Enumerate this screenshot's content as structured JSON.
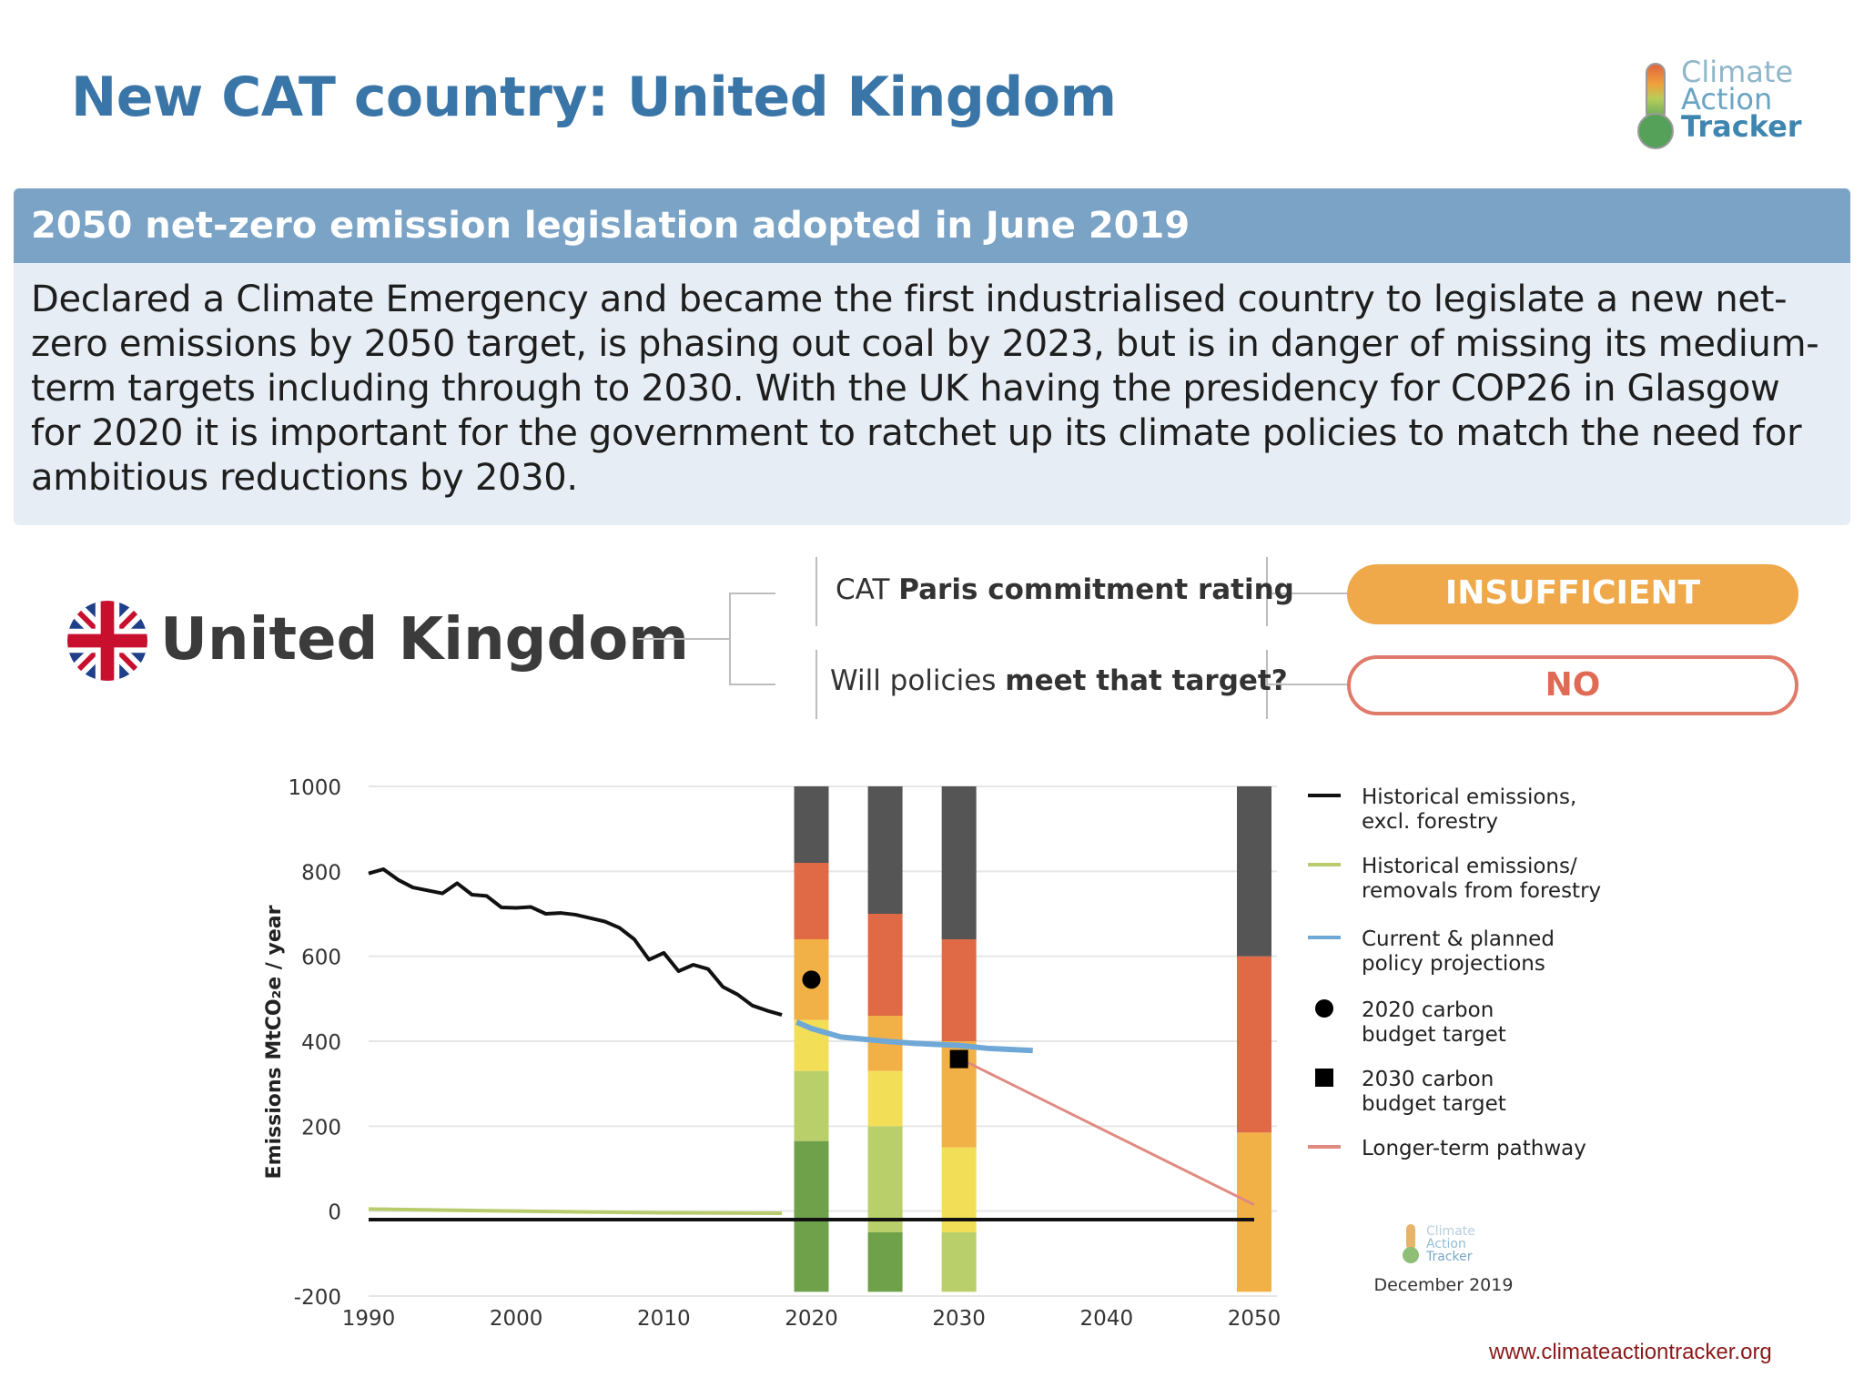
{
  "slide": {
    "title": "New CAT country: United Kingdom",
    "url": "www.climateactiontracker.org"
  },
  "logo": {
    "line1": "Climate",
    "line2": "Action",
    "line3": "Tracker",
    "small_line1": "Climate",
    "small_line2": "Action",
    "small_line3": "Tracker"
  },
  "panel": {
    "header": "2050 net-zero emission legislation adopted in June 2019",
    "lines": [
      "Declared a Climate Emergency and became the first industrialised country to legislate a new net-",
      "zero emissions by 2050 target, is phasing out coal by 2023, but is in danger of missing its medium-",
      "term targets including through to 2030.  With the UK having the presidency for COP26 in Glasgow",
      "for 2020 it is important for the government to ratchet up its climate policies to match the need for",
      "ambitious reductions by 2030."
    ]
  },
  "rating": {
    "country": "United Kingdom",
    "q1_pre": "CAT ",
    "q1_bold": "Paris commitment rating",
    "q2_pre": "Will policies ",
    "q2_bold": "meet that target?",
    "a1": "INSUFFICIENT",
    "a2": "NO"
  },
  "colors": {
    "title_blue": "#3a75a8",
    "header_blue": "#7aa3c6",
    "panel_bg": "#e6edf4",
    "insufficient": "#efa84a",
    "no_border": "#e07a6a",
    "historical": "#111111",
    "forestry": "#b8cc6e",
    "policy": "#6fa8d6",
    "longterm": "#e08a80",
    "url": "#8b1a1a"
  },
  "chart_data": {
    "type": "line",
    "ylabel": "Emissions MtCO₂e / year",
    "xlim": [
      1990,
      2050
    ],
    "ylim": [
      -200,
      1000
    ],
    "x_ticks": [
      1990,
      2000,
      2010,
      2020,
      2030,
      2040,
      2050
    ],
    "y_ticks": [
      -200,
      0,
      200,
      400,
      600,
      800,
      1000
    ],
    "grid": true,
    "legend_position": "right",
    "date_label": "December 2019",
    "series": [
      {
        "name": "Historical emissions, excl. forestry",
        "legend": [
          "Historical emissions,",
          "excl. forestry"
        ],
        "color": "#111111",
        "x": [
          1990,
          1991,
          1992,
          1993,
          1994,
          1995,
          1996,
          1997,
          1998,
          1999,
          2000,
          2001,
          2002,
          2003,
          2004,
          2005,
          2006,
          2007,
          2008,
          2009,
          2010,
          2011,
          2012,
          2013,
          2014,
          2015,
          2016,
          2017,
          2018
        ],
        "y": [
          795,
          805,
          780,
          762,
          755,
          748,
          772,
          745,
          742,
          715,
          714,
          716,
          700,
          702,
          698,
          690,
          682,
          667,
          640,
          592,
          608,
          565,
          580,
          570,
          528,
          510,
          484,
          472,
          462
        ]
      },
      {
        "name": "Historical emissions/ removals from forestry",
        "legend": [
          "Historical emissions/",
          "removals from forestry"
        ],
        "color": "#b8cc6e",
        "x": [
          1990,
          2000,
          2010,
          2018
        ],
        "y": [
          5,
          0,
          -4,
          -5
        ]
      },
      {
        "name": "Current & planned policy projections",
        "legend": [
          "Current & planned",
          "policy projections"
        ],
        "color": "#6fa8d6",
        "x": [
          2019,
          2020,
          2022,
          2025,
          2027,
          2030,
          2032,
          2035
        ],
        "y": [
          445,
          430,
          410,
          400,
          395,
          390,
          383,
          378
        ]
      },
      {
        "name": "Longer-term pathway",
        "legend": [
          "Longer-term pathway"
        ],
        "color": "#e08a80",
        "x": [
          2030,
          2050
        ],
        "y": [
          360,
          15
        ]
      }
    ],
    "markers": [
      {
        "name": "2020 carbon budget target",
        "legend": [
          "2020 carbon",
          "budget target"
        ],
        "shape": "circle",
        "x": 2020,
        "y": 545
      },
      {
        "name": "2030 carbon budget target",
        "legend": [
          "2030 carbon",
          "budget target"
        ],
        "shape": "square",
        "x": 2030,
        "y": 358
      }
    ],
    "rating_bars": [
      {
        "x": 2020,
        "bands": [
          [
            -190,
            165,
            "#6fa04a"
          ],
          [
            165,
            330,
            "#b9cf6a"
          ],
          [
            330,
            450,
            "#f2df57"
          ],
          [
            450,
            640,
            "#f2b146"
          ],
          [
            640,
            820,
            "#e06a46"
          ],
          [
            820,
            1000,
            "#555555"
          ]
        ]
      },
      {
        "x": 2025,
        "bands": [
          [
            -190,
            -50,
            "#6fa04a"
          ],
          [
            -50,
            200,
            "#b9cf6a"
          ],
          [
            200,
            330,
            "#f2df57"
          ],
          [
            330,
            460,
            "#f2b146"
          ],
          [
            460,
            700,
            "#e06a46"
          ],
          [
            700,
            1000,
            "#555555"
          ]
        ]
      },
      {
        "x": 2030,
        "bands": [
          [
            -190,
            -50,
            "#b9cf6a"
          ],
          [
            -50,
            150,
            "#f2df57"
          ],
          [
            150,
            400,
            "#f2b146"
          ],
          [
            400,
            640,
            "#e06a46"
          ],
          [
            640,
            1000,
            "#555555"
          ]
        ]
      },
      {
        "x": 2050,
        "bands": [
          [
            -190,
            185,
            "#f2b146"
          ],
          [
            185,
            600,
            "#e06a46"
          ],
          [
            600,
            1000,
            "#555555"
          ]
        ]
      }
    ],
    "zero_line": {
      "color": "#111111",
      "x": [
        1990,
        2050
      ],
      "y": -20
    }
  }
}
